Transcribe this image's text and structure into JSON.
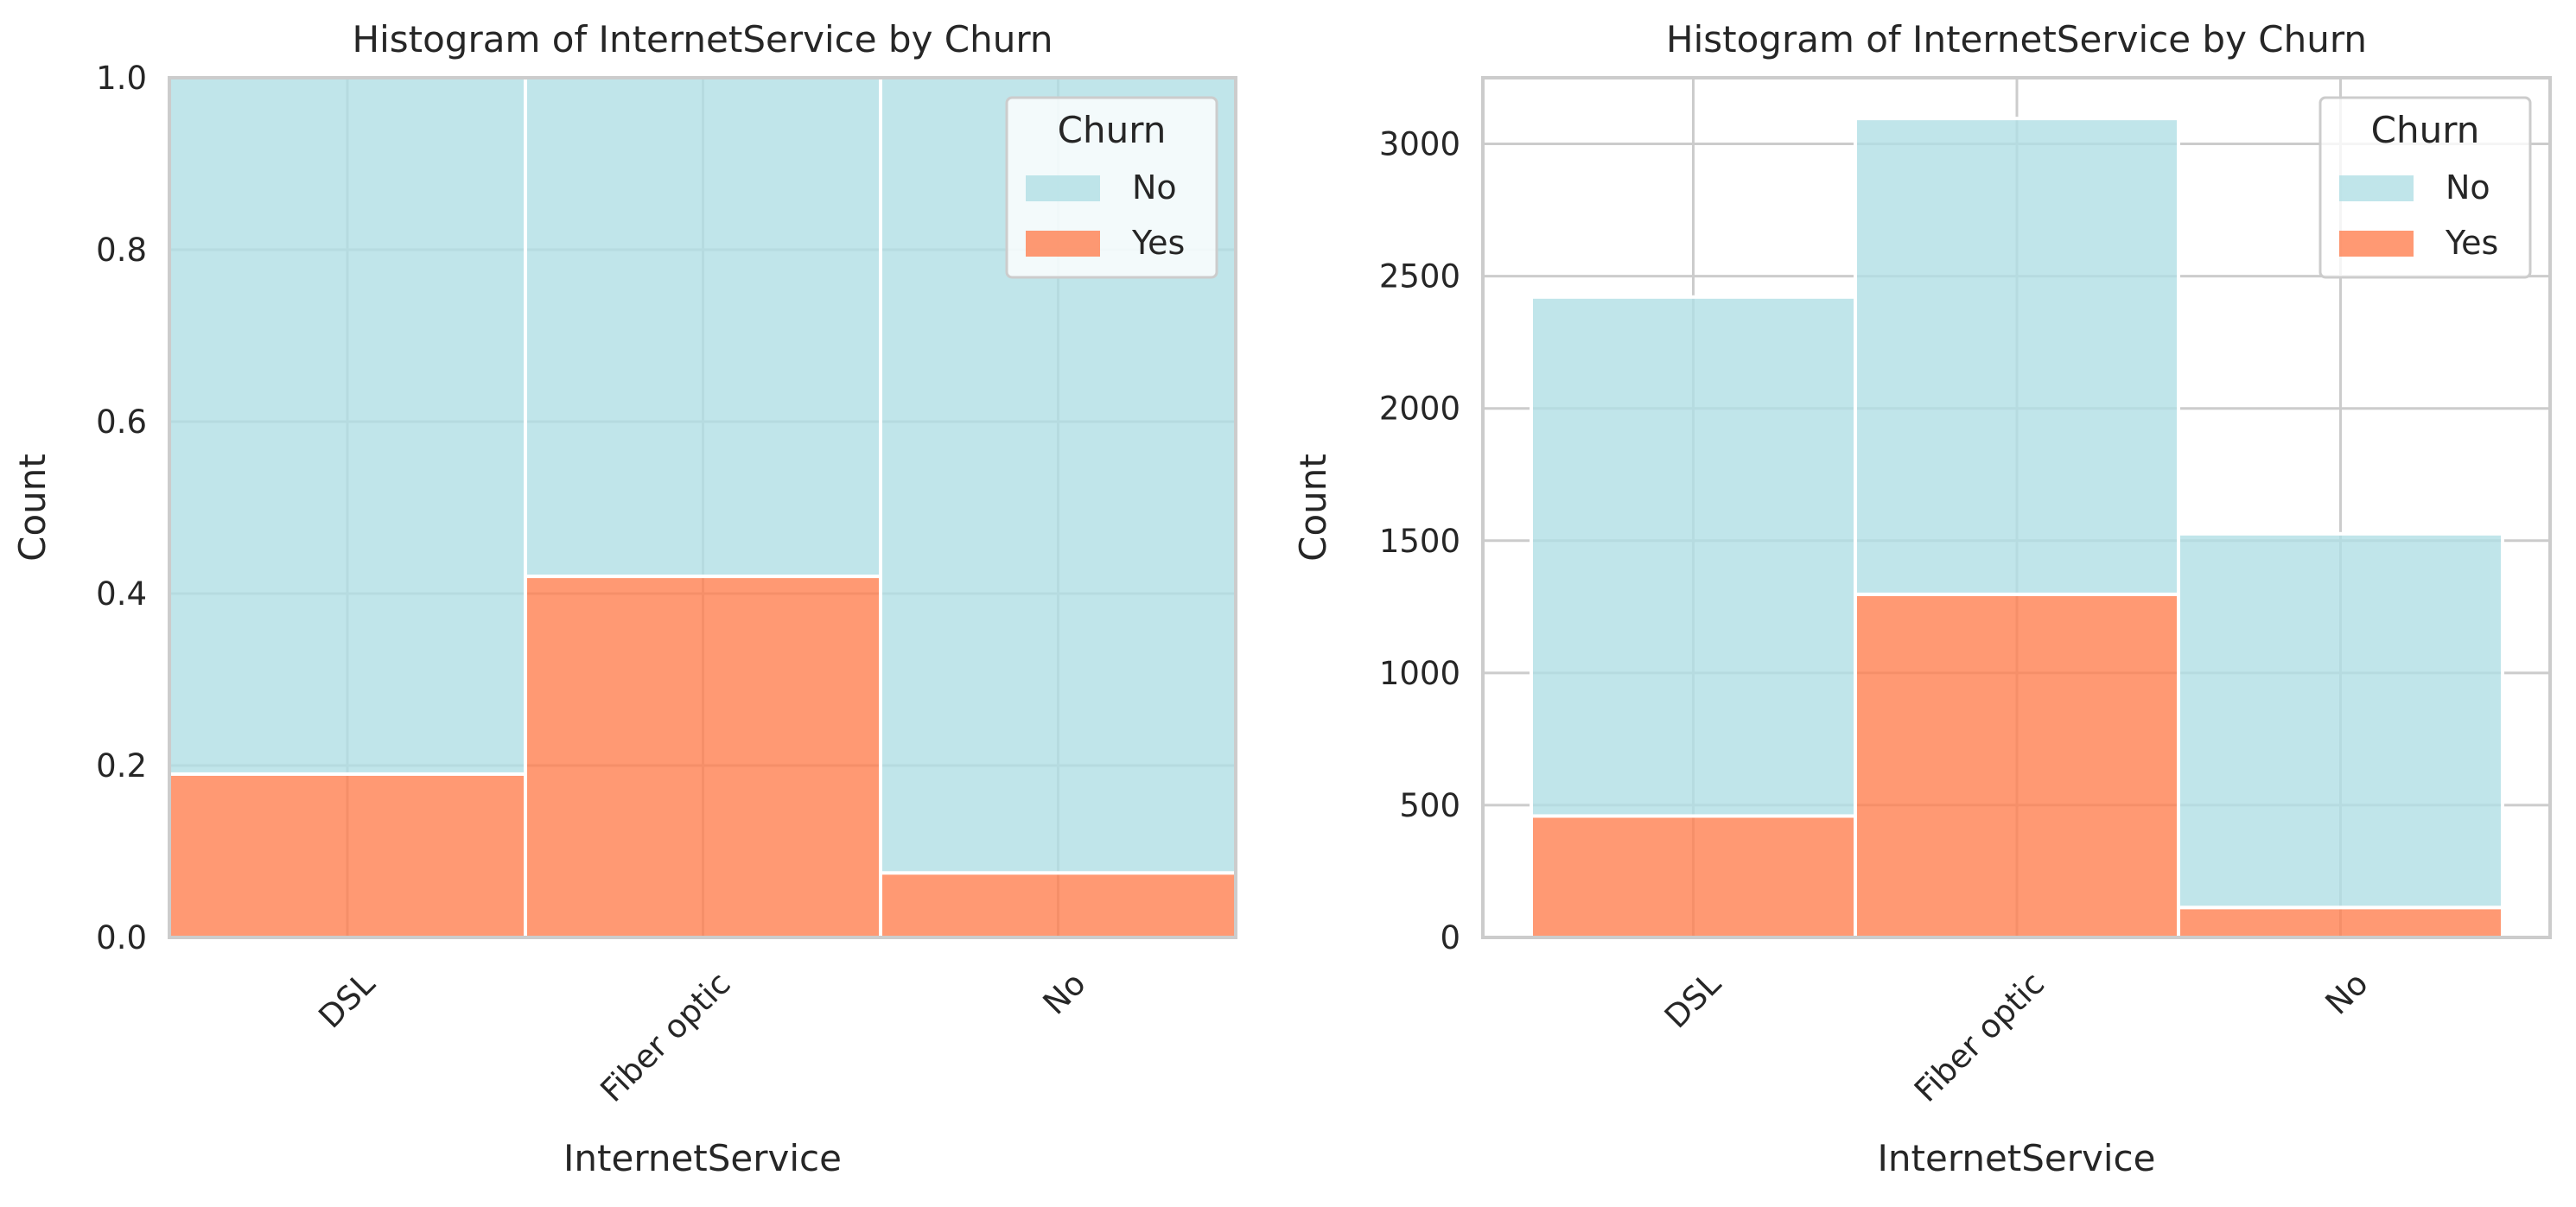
{
  "colors": {
    "No": "#b0dfe5",
    "Yes": "#ff7f50",
    "grid": "#cccccc",
    "spine": "#cccccc",
    "bar_edge": "#ffffff",
    "text": "#262626"
  },
  "chart_data": [
    {
      "type": "bar",
      "stacking": "fill",
      "title": "Histogram of InternetService by Churn",
      "xlabel": "InternetService",
      "ylabel": "Count",
      "categories": [
        "DSL",
        "Fiber optic",
        "No"
      ],
      "series": [
        {
          "name": "No",
          "values": [
            0.81,
            0.58,
            0.925
          ]
        },
        {
          "name": "Yes",
          "values": [
            0.19,
            0.42,
            0.075
          ]
        }
      ],
      "ylim": [
        0,
        1
      ],
      "yticks": [
        0.0,
        0.2,
        0.4,
        0.6,
        0.8,
        1.0
      ],
      "ytick_labels": [
        "0.0",
        "0.2",
        "0.4",
        "0.6",
        "0.8",
        "1.0"
      ],
      "grid": true,
      "legend": {
        "title": "Churn",
        "position": "top-right"
      }
    },
    {
      "type": "bar",
      "stacking": "stack",
      "title": "Histogram of InternetService by Churn",
      "xlabel": "InternetService",
      "ylabel": "Count",
      "categories": [
        "DSL",
        "Fiber optic",
        "No"
      ],
      "series": [
        {
          "name": "No",
          "values": [
            1962,
            1799,
            1413
          ]
        },
        {
          "name": "Yes",
          "values": [
            459,
            1297,
            113
          ]
        }
      ],
      "ylim": [
        0,
        3250
      ],
      "yticks": [
        0,
        500,
        1000,
        1500,
        2000,
        2500,
        3000
      ],
      "ytick_labels": [
        "0",
        "500",
        "1000",
        "1500",
        "2000",
        "2500",
        "3000"
      ],
      "grid": true,
      "legend": {
        "title": "Churn",
        "position": "top-right"
      }
    }
  ]
}
